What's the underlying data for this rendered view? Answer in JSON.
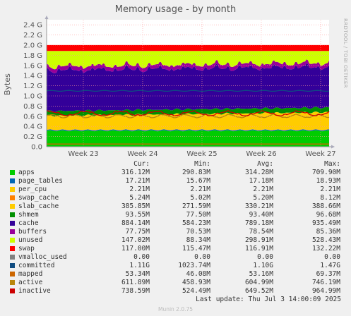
{
  "chart_data": {
    "type": "area",
    "title": "Memory usage - by month",
    "side_label": "RRDTOOL / TOBI OETIKER",
    "ylabel": "Bytes",
    "yticks": [
      "0.0",
      "0.2 G",
      "0.4 G",
      "0.6 G",
      "0.8 G",
      "1.0 G",
      "1.2 G",
      "1.4 G",
      "1.6 G",
      "1.8 G",
      "2.0 G",
      "2.2 G",
      "2.4 G"
    ],
    "ylim": [
      0,
      2.5
    ],
    "xticks": [
      "Week 23",
      "Week 24",
      "Week 25",
      "Week 26",
      "Week 27"
    ],
    "grid": true,
    "stack_order_from_bottom": [
      "apps",
      "page_tables",
      "per_cpu",
      "swap_cache",
      "slab_cache",
      "shmem",
      "cache",
      "buffers",
      "unused",
      "swap"
    ],
    "line_series": [
      "committed",
      "mapped",
      "active",
      "inactive"
    ]
  },
  "legend": {
    "headers": {
      "cur": "Cur:",
      "min": "Min:",
      "avg": "Avg:",
      "max": "Max:"
    },
    "rows": [
      {
        "name": "apps",
        "color": "#00cc00",
        "cur": "316.12M",
        "min": "290.83M",
        "avg": "314.28M",
        "max": "709.90M"
      },
      {
        "name": "page_tables",
        "color": "#0066b3",
        "cur": "17.21M",
        "min": "15.67M",
        "avg": "17.18M",
        "max": "18.93M"
      },
      {
        "name": "per_cpu",
        "color": "#ffcc00",
        "cur": "2.21M",
        "min": "2.21M",
        "avg": "2.21M",
        "max": "2.21M"
      },
      {
        "name": "swap_cache",
        "color": "#ff8000",
        "cur": "5.24M",
        "min": "5.02M",
        "avg": "5.20M",
        "max": "8.12M"
      },
      {
        "name": "slab_cache",
        "color": "#ffcc00",
        "cur": "385.85M",
        "min": "271.59M",
        "avg": "330.21M",
        "max": "388.66M"
      },
      {
        "name": "shmem",
        "color": "#008f00",
        "cur": "93.55M",
        "min": "77.50M",
        "avg": "93.40M",
        "max": "96.68M"
      },
      {
        "name": "cache",
        "color": "#330099",
        "cur": "884.14M",
        "min": "584.23M",
        "avg": "789.18M",
        "max": "935.49M"
      },
      {
        "name": "buffers",
        "color": "#990099",
        "cur": "77.75M",
        "min": "70.53M",
        "avg": "78.54M",
        "max": "85.36M"
      },
      {
        "name": "unused",
        "color": "#ccff00",
        "cur": "147.02M",
        "min": "88.34M",
        "avg": "298.91M",
        "max": "528.43M"
      },
      {
        "name": "swap",
        "color": "#ff0000",
        "cur": "117.00M",
        "min": "115.47M",
        "avg": "116.91M",
        "max": "132.22M"
      },
      {
        "name": "vmalloc_used",
        "color": "#808080",
        "cur": "0.00",
        "min": "0.00",
        "avg": "0.00",
        "max": "0.00"
      },
      {
        "name": "committed",
        "color": "#0f4c81",
        "cur": "1.11G",
        "min": "1023.74M",
        "avg": "1.10G",
        "max": "1.47G"
      },
      {
        "name": "mapped",
        "color": "#cc6600",
        "cur": "53.34M",
        "min": "46.08M",
        "avg": "53.16M",
        "max": "69.37M"
      },
      {
        "name": "active",
        "color": "#b8860b",
        "cur": "611.89M",
        "min": "458.93M",
        "avg": "604.99M",
        "max": "746.19M"
      },
      {
        "name": "inactive",
        "color": "#cc0000",
        "cur": "738.59M",
        "min": "524.49M",
        "avg": "649.52M",
        "max": "964.99M"
      }
    ]
  },
  "last_update": "Last update: Thu Jul  3 14:00:09 2025",
  "footer": "Munin 2.0.75"
}
